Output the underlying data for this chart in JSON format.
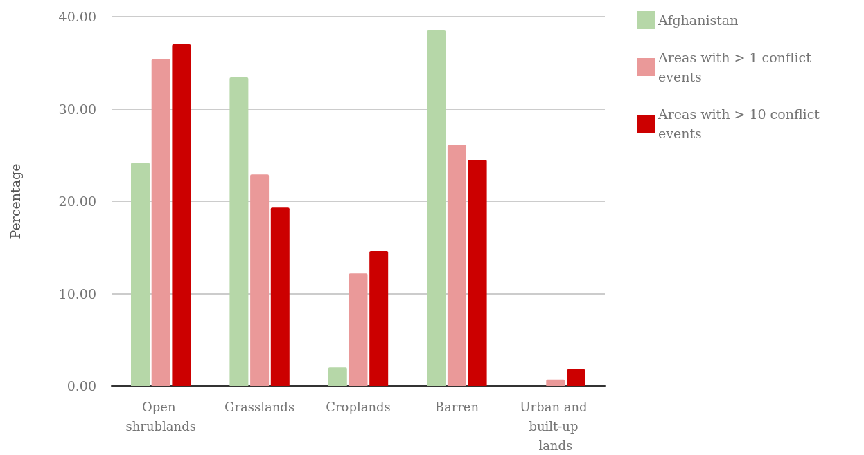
{
  "chart_data": {
    "type": "bar",
    "ylabel": "Percentage",
    "categories": [
      "Open shrublands",
      "Grasslands",
      "Croplands",
      "Barren",
      "Urban and built-up lands"
    ],
    "series": [
      {
        "name": "Afghanistan",
        "color": "#b6d7a8",
        "values": [
          24.2,
          33.4,
          2.0,
          38.5,
          0
        ]
      },
      {
        "name": "Areas with > 1 conflict events",
        "color": "#ea9999",
        "values": [
          35.4,
          22.9,
          12.2,
          26.1,
          0.7
        ]
      },
      {
        "name": "Areas with > 10 conflict events",
        "color": "#cc0000",
        "values": [
          37.0,
          19.3,
          14.6,
          24.5,
          1.8
        ]
      }
    ],
    "ylim": [
      0,
      40
    ],
    "yticks": [
      {
        "value": 0,
        "label": "0.00"
      },
      {
        "value": 10,
        "label": "10.00"
      },
      {
        "value": 20,
        "label": "20.00"
      },
      {
        "value": 30,
        "label": "30.00"
      },
      {
        "value": 40,
        "label": "40.00"
      }
    ],
    "grid": "y",
    "legend": "top right"
  }
}
